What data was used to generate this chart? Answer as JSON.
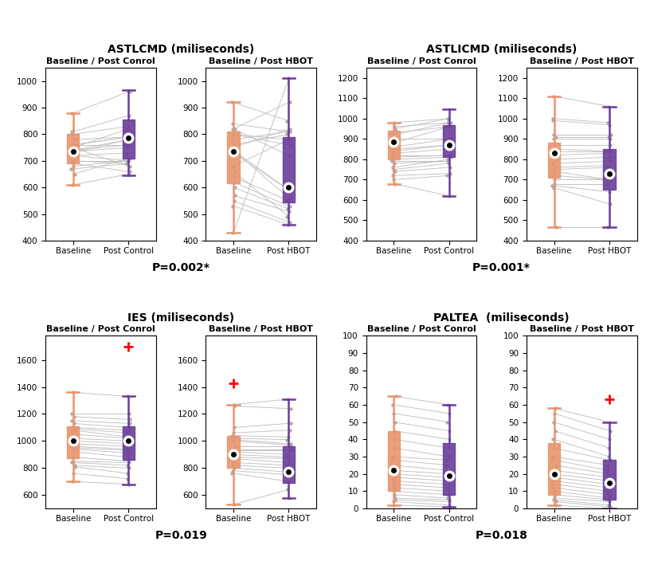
{
  "panels": [
    {
      "title": "ASTLCMD (miliseconds)",
      "subtitle_left": "Baseline / Post Conrol",
      "subtitle_right": "Baseline / Post HBOT",
      "pvalue": "P=0.002*",
      "ylim": [
        400,
        1050
      ],
      "yticks": [
        400,
        500,
        600,
        700,
        800,
        900,
        1000
      ],
      "left_baseline": [
        735,
        760,
        700,
        690,
        750,
        800,
        810,
        780,
        760,
        720,
        670,
        650,
        740,
        880,
        730,
        700,
        610,
        680,
        740,
        760,
        720,
        750
      ],
      "left_post": [
        750,
        790,
        700,
        660,
        820,
        830,
        870,
        790,
        760,
        700,
        690,
        710,
        780,
        960,
        780,
        690,
        650,
        700,
        760,
        790,
        730,
        680
      ],
      "left_box_baseline": {
        "q1": 690,
        "median": 735,
        "q3": 800,
        "whisker_low": 610,
        "whisker_high": 880
      },
      "left_box_post": {
        "q1": 710,
        "median": 785,
        "q3": 855,
        "whisker_low": 645,
        "whisker_high": 965
      },
      "right_baseline": [
        740,
        730,
        840,
        760,
        800,
        820,
        600,
        640,
        620,
        570,
        550,
        820,
        920,
        800,
        780,
        750,
        680,
        740,
        660,
        530,
        430
      ],
      "right_post": [
        560,
        590,
        810,
        800,
        760,
        920,
        520,
        550,
        530,
        510,
        470,
        720,
        850,
        780,
        810,
        820,
        780,
        590,
        490,
        460,
        1010
      ],
      "right_box_baseline": {
        "q1": 615,
        "median": 735,
        "q3": 810,
        "whisker_low": 430,
        "whisker_high": 920
      },
      "right_box_post": {
        "q1": 545,
        "median": 600,
        "q3": 790,
        "whisker_low": 460,
        "whisker_high": 1010
      },
      "left_outliers_baseline": [],
      "left_outliers_post": [],
      "right_outliers_baseline": [],
      "right_outliers_post": []
    },
    {
      "title": "ASTLICMD (miliseconds)",
      "subtitle_left": "Baseline / Post Conrol",
      "subtitle_right": "Baseline / Post HBOT",
      "pvalue": "P=0.001*",
      "ylim": [
        400,
        1250
      ],
      "yticks": [
        400,
        500,
        600,
        700,
        800,
        900,
        1000,
        1100,
        1200
      ],
      "left_baseline": [
        980,
        960,
        950,
        930,
        920,
        900,
        880,
        860,
        850,
        840,
        830,
        820,
        810,
        800,
        790,
        780,
        760,
        750,
        740,
        720,
        700,
        680
      ],
      "left_post": [
        1000,
        980,
        1000,
        960,
        980,
        900,
        960,
        900,
        870,
        870,
        850,
        820,
        820,
        810,
        790,
        790,
        800,
        780,
        760,
        730,
        720,
        620
      ],
      "left_box_baseline": {
        "q1": 800,
        "median": 885,
        "q3": 940,
        "whisker_low": 680,
        "whisker_high": 980
      },
      "left_box_post": {
        "q1": 810,
        "median": 870,
        "q3": 970,
        "whisker_low": 620,
        "whisker_high": 1045
      },
      "right_baseline": [
        1110,
        1000,
        990,
        920,
        910,
        900,
        870,
        850,
        840,
        820,
        800,
        780,
        760,
        750,
        740,
        720,
        700,
        680,
        670,
        660,
        465
      ],
      "right_post": [
        1060,
        980,
        970,
        920,
        910,
        900,
        870,
        840,
        840,
        830,
        810,
        790,
        770,
        760,
        700,
        700,
        700,
        680,
        640,
        580,
        465
      ],
      "right_box_baseline": {
        "q1": 710,
        "median": 830,
        "q3": 880,
        "whisker_low": 465,
        "whisker_high": 1110
      },
      "right_box_post": {
        "q1": 650,
        "median": 730,
        "q3": 850,
        "whisker_low": 465,
        "whisker_high": 1060
      },
      "left_outliers_baseline": [],
      "left_outliers_post": [],
      "right_outliers_baseline": [],
      "right_outliers_post": []
    },
    {
      "title": "IES (miliseconds)",
      "subtitle_left": "Baseline / Post Conrol",
      "subtitle_right": "Baseline / Post HBOT",
      "pvalue": "P=0.019",
      "ylim": [
        500,
        1780
      ],
      "yticks": [
        600,
        800,
        1000,
        1200,
        1400,
        1600
      ],
      "left_baseline": [
        1360,
        1200,
        1180,
        1150,
        1130,
        1100,
        1090,
        1080,
        1050,
        1020,
        1000,
        980,
        960,
        950,
        940,
        920,
        880,
        850,
        840,
        820,
        810,
        760,
        700
      ],
      "left_post": [
        1330,
        1200,
        1160,
        1130,
        1100,
        1080,
        1060,
        1030,
        1020,
        1000,
        980,
        960,
        940,
        930,
        910,
        880,
        850,
        840,
        820,
        800,
        760,
        720,
        680
      ],
      "left_box_baseline": {
        "q1": 870,
        "median": 1000,
        "q3": 1110,
        "whisker_low": 700,
        "whisker_high": 1360
      },
      "left_box_post": {
        "q1": 860,
        "median": 1005,
        "q3": 1110,
        "whisker_low": 680,
        "whisker_high": 1330
      },
      "right_baseline": [
        1270,
        1260,
        1100,
        1060,
        1040,
        1020,
        1010,
        1000,
        960,
        940,
        930,
        920,
        900,
        880,
        870,
        840,
        820,
        800,
        780,
        760,
        530
      ],
      "right_post": [
        1310,
        1240,
        1130,
        1080,
        1030,
        1010,
        980,
        970,
        960,
        940,
        930,
        900,
        880,
        870,
        840,
        820,
        800,
        770,
        750,
        700,
        640,
        580
      ],
      "right_box_baseline": {
        "q1": 800,
        "median": 900,
        "q3": 1040,
        "whisker_low": 530,
        "whisker_high": 1270
      },
      "right_box_post": {
        "q1": 690,
        "median": 770,
        "q3": 960,
        "whisker_low": 580,
        "whisker_high": 1310
      },
      "left_outliers_baseline": [],
      "left_outliers_post": [
        1700
      ],
      "right_outliers_baseline": [
        1430
      ],
      "right_outliers_post": []
    },
    {
      "title": "PALTEA  (miliseconds)",
      "subtitle_left": "Baseline / Post Conrol",
      "subtitle_right": "Baseline / Post HBOT",
      "pvalue": "P=0.018",
      "ylim": [
        0,
        100
      ],
      "yticks": [
        0,
        10,
        20,
        30,
        40,
        50,
        60,
        70,
        80,
        90,
        100
      ],
      "left_baseline": [
        65,
        60,
        55,
        50,
        45,
        40,
        35,
        30,
        28,
        25,
        22,
        20,
        18,
        16,
        14,
        12,
        10,
        8,
        6,
        5,
        4,
        2
      ],
      "left_post": [
        60,
        55,
        50,
        45,
        40,
        35,
        30,
        28,
        25,
        22,
        20,
        18,
        16,
        14,
        12,
        10,
        8,
        6,
        5,
        4,
        2,
        1
      ],
      "left_box_baseline": {
        "q1": 10,
        "median": 22,
        "q3": 45,
        "whisker_low": 2,
        "whisker_high": 65
      },
      "left_box_post": {
        "q1": 8,
        "median": 19,
        "q3": 38,
        "whisker_low": 1,
        "whisker_high": 60
      },
      "right_baseline": [
        58,
        55,
        50,
        45,
        40,
        35,
        30,
        28,
        25,
        22,
        20,
        18,
        16,
        14,
        12,
        10,
        8,
        6,
        5,
        4,
        2
      ],
      "right_post": [
        50,
        45,
        40,
        35,
        30,
        28,
        25,
        22,
        20,
        18,
        16,
        14,
        12,
        10,
        8,
        6,
        5,
        4,
        2,
        1,
        0
      ],
      "right_box_baseline": {
        "q1": 8,
        "median": 20,
        "q3": 38,
        "whisker_low": 2,
        "whisker_high": 58
      },
      "right_box_post": {
        "q1": 5,
        "median": 15,
        "q3": 28,
        "whisker_low": 0,
        "whisker_high": 50
      },
      "left_outliers_baseline": [],
      "left_outliers_post": [],
      "right_outliers_baseline": [],
      "right_outliers_post": [
        63
      ]
    }
  ],
  "orange_color": "#E8956D",
  "purple_color": "#6A3D9A",
  "line_color": "#C0C0C0",
  "outlier_color": "#FF0000",
  "box_width": 0.22,
  "background_color": "#FFFFFF"
}
